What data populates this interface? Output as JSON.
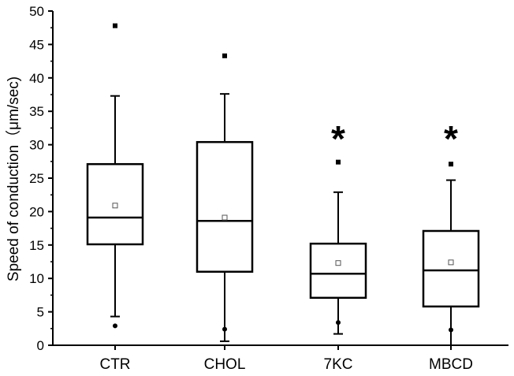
{
  "chart_data": {
    "type": "box",
    "xlabel": "",
    "ylabel": "Speed of conduction（μm/sec)",
    "ylim": [
      0,
      50
    ],
    "yticks": [
      0,
      5,
      10,
      15,
      20,
      25,
      30,
      35,
      40,
      45,
      50
    ],
    "categories": [
      "CTR",
      "CHOL",
      "7KC",
      "MBCD"
    ],
    "boxes": [
      {
        "category": "CTR",
        "whisker_low": 4.3,
        "q1": 15.1,
        "median": 19.1,
        "q3": 27.1,
        "whisker_high": 37.3,
        "mean": 20.9,
        "outliers_high": [
          47.8
        ],
        "outliers_low": [
          2.9
        ],
        "significance": ""
      },
      {
        "category": "CHOL",
        "whisker_low": 0.6,
        "q1": 11.0,
        "median": 18.6,
        "q3": 30.4,
        "whisker_high": 37.6,
        "mean": 19.1,
        "outliers_high": [
          43.3
        ],
        "outliers_low": [
          2.4
        ],
        "significance": ""
      },
      {
        "category": "7KC",
        "whisker_low": 1.7,
        "q1": 7.1,
        "median": 10.7,
        "q3": 15.2,
        "whisker_high": 22.9,
        "mean": 12.3,
        "outliers_high": [
          27.4
        ],
        "outliers_low": [
          3.4
        ],
        "significance": "*"
      },
      {
        "category": "MBCD",
        "whisker_low": 0.0,
        "q1": 5.8,
        "median": 11.2,
        "q3": 17.1,
        "whisker_high": 24.7,
        "mean": 12.4,
        "outliers_high": [
          27.1
        ],
        "outliers_low": [
          2.3
        ],
        "significance": "*"
      }
    ],
    "colors": {
      "box": "#000000",
      "mean_marker": "#555555",
      "background": "#ffffff"
    }
  }
}
